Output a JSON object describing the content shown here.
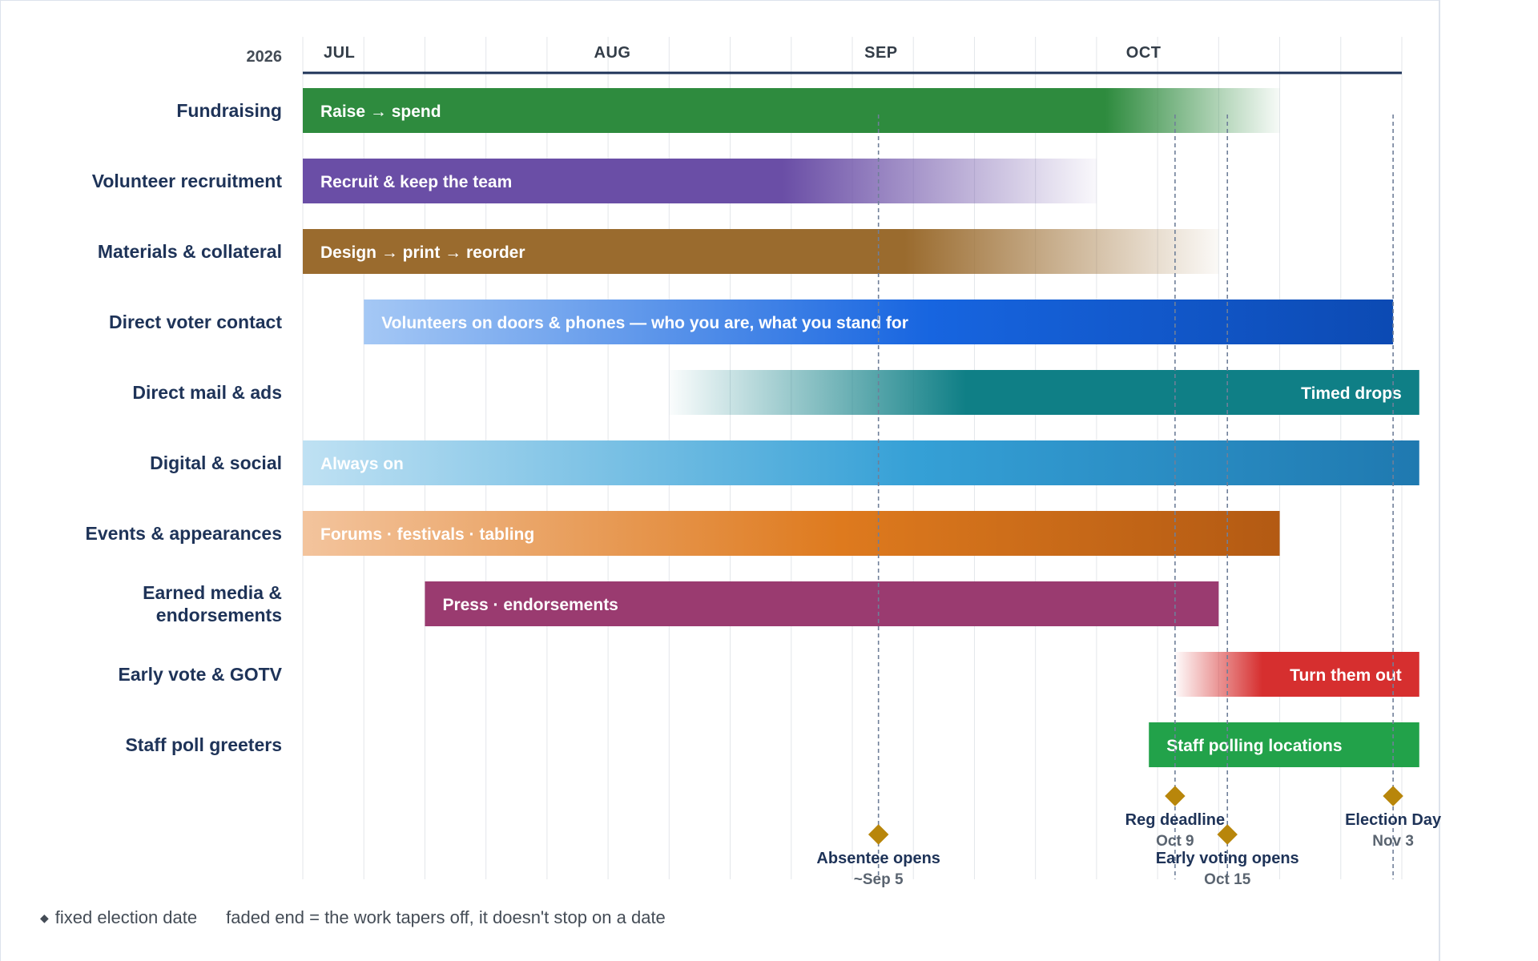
{
  "chart_data": {
    "type": "gantt",
    "year": "2026",
    "months": [
      "JUL",
      "AUG",
      "SEP",
      "OCT"
    ],
    "month_starts": [
      "2026-07-01",
      "2026-08-01",
      "2026-09-01",
      "2026-10-01"
    ],
    "axis_range": [
      "2026-07-01",
      "2026-11-04"
    ],
    "grid": "weekly vertical lines",
    "rows": [
      {
        "label": "Fundraising",
        "bar": "Raise → spend",
        "start": "2026-07-01",
        "end": "2026-10-21",
        "solid_until": "2026-10-01",
        "fade": "end",
        "color": "#2e8b3e",
        "label_align": "left"
      },
      {
        "label": "Volunteer recruitment",
        "bar": "Recruit & keep the team",
        "start": "2026-07-01",
        "end": "2026-09-30",
        "solid_until": "2026-08-25",
        "fade": "end",
        "color": "#6a4ea6",
        "label_align": "left"
      },
      {
        "label": "Materials & collateral",
        "bar": "Design → print → reorder",
        "start": "2026-07-01",
        "end": "2026-10-14",
        "solid_until": "2026-09-08",
        "fade": "end",
        "color": "#9a6b2e",
        "label_align": "left"
      },
      {
        "label": "Direct voter contact",
        "bar": "Volunteers on doors & phones — who you are, what you stand for",
        "start": "2026-07-08",
        "end": "2026-11-03",
        "fade": "gradient-in",
        "color_from": "#a5c8f5",
        "color_mid": "#1765e0",
        "color": "#0c4ab3",
        "label_align": "left"
      },
      {
        "label": "Direct mail & ads",
        "bar": "Timed drops",
        "start": "2026-08-12",
        "end": "2026-11-06",
        "solid_from": "2026-09-15",
        "fade": "start",
        "color": "#0f7f86",
        "label_align": "right"
      },
      {
        "label": "Digital & social",
        "bar": "Always on",
        "start": "2026-07-01",
        "end": "2026-11-06",
        "fade": "gradient-in",
        "color_from": "#bfe1f3",
        "color_mid": "#35a0d6",
        "color": "#1f79b0",
        "label_align": "left"
      },
      {
        "label": "Events & appearances",
        "bar": "Forums · festivals · tabling",
        "start": "2026-07-01",
        "end": "2026-10-21",
        "fade": "gradient-in",
        "color_from": "#f3c49d",
        "color_mid": "#de7a1e",
        "color": "#b35a13",
        "label_align": "left"
      },
      {
        "label": "Earned media & endorsements",
        "label_lines": [
          "Earned media &",
          "endorsements"
        ],
        "bar": "Press · endorsements",
        "start": "2026-07-15",
        "end": "2026-10-14",
        "fade": "none",
        "color": "#9a3b70",
        "label_align": "left"
      },
      {
        "label": "Early vote & GOTV",
        "bar": "Turn them out",
        "start": "2026-10-09",
        "end": "2026-11-06",
        "solid_from": "2026-10-19",
        "fade": "start",
        "color": "#d62f2f",
        "label_align": "right"
      },
      {
        "label": "Staff poll greeters",
        "bar": "Staff polling locations",
        "start": "2026-10-06",
        "end": "2026-11-06",
        "fade": "none",
        "color": "#22a24a",
        "label_align": "left"
      }
    ],
    "milestones": [
      {
        "name": "Absentee opens",
        "date_label": "~Sep 5",
        "date": "2026-09-05",
        "tier": "low"
      },
      {
        "name": "Reg deadline",
        "date_label": "Oct 9",
        "date": "2026-10-09",
        "tier": "high"
      },
      {
        "name": "Early voting opens",
        "date_label": "Oct 15",
        "date": "2026-10-15",
        "tier": "low"
      },
      {
        "name": "Election Day",
        "date_label": "Nov 3",
        "date": "2026-11-03",
        "tier": "high"
      }
    ],
    "legend": {
      "milestone_symbol": "◆",
      "milestone": "fixed election date",
      "fade": "faded end = the work tapers off, it doesn't stop on a date"
    }
  },
  "colors": {
    "axis": "#1e3358",
    "grid": "#e3e6ea",
    "milestone_line": "#6f7f99",
    "milestone_marker": "#b8860b"
  }
}
